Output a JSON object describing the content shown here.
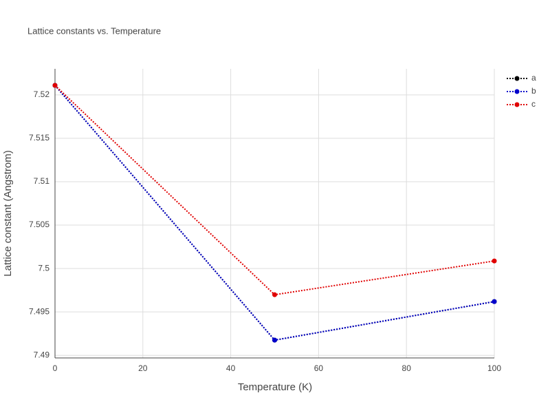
{
  "chart_data": {
    "type": "line",
    "title": "Lattice constants vs. Temperature",
    "x_label": "Temperature (K)",
    "y_label": "Lattice constant (Angstrom)",
    "x": [
      0,
      50,
      100
    ],
    "series": [
      {
        "name": "a",
        "color": "#000000",
        "values": [
          7.5211,
          7.49175,
          7.49619
        ]
      },
      {
        "name": "b",
        "color": "#0000cc",
        "values": [
          7.5211,
          7.49175,
          7.49619
        ]
      },
      {
        "name": "c",
        "color": "#e00000",
        "values": [
          7.5211,
          7.49698,
          7.50087
        ]
      }
    ],
    "xlim": [
      0,
      100
    ],
    "xticks": [
      0,
      20,
      40,
      60,
      80,
      100
    ],
    "ylim": [
      7.4897,
      7.523
    ],
    "yticks": [
      7.49,
      7.495,
      7.5,
      7.505,
      7.51,
      7.515,
      7.52
    ],
    "grid": true,
    "legend": "top-right"
  }
}
